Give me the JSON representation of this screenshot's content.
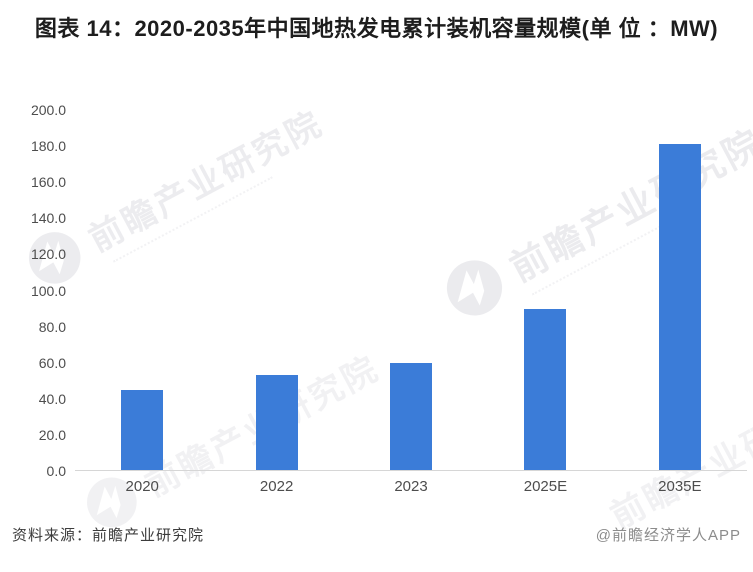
{
  "title": "图表 14：2020-2035年中国地热发电累计装机容量规模(单 位 ：MW)",
  "chart_data": {
    "type": "bar",
    "title": "图表 14：2020-2035年中国地热发电累计装机容量规模(单位：MW)",
    "categories": [
      "2020",
      "2022",
      "2023",
      "2025E",
      "2035E"
    ],
    "values": [
      45,
      53,
      60,
      90,
      181
    ],
    "unit": "MW",
    "xlabel": "",
    "ylabel": "MW",
    "ylim": [
      0,
      200
    ],
    "ytick_step": 20,
    "y_ticks": [
      "200.0",
      "180.0",
      "160.0",
      "140.0",
      "120.0",
      "100.0",
      "80.0",
      "60.0",
      "40.0",
      "20.0",
      "0.0"
    ],
    "grid": false,
    "legend": null,
    "bar_color": "#3b7cd8"
  },
  "watermark": {
    "text": "前瞻产业研究院",
    "logo": "qianzhan-swoosh"
  },
  "footer": {
    "source": "资料来源：前瞻产业研究院",
    "credit": "@前瞻经济学人APP"
  },
  "colors": {
    "bar": "#3b7cd8",
    "title_text": "#1d1d1d",
    "axis_text": "#4d4d4d",
    "axis_line": "#d6d6d6",
    "source_text": "#3c3c3c",
    "credit_text": "#8c8c8c",
    "watermark": "#8f8fa0",
    "background": "#ffffff"
  }
}
